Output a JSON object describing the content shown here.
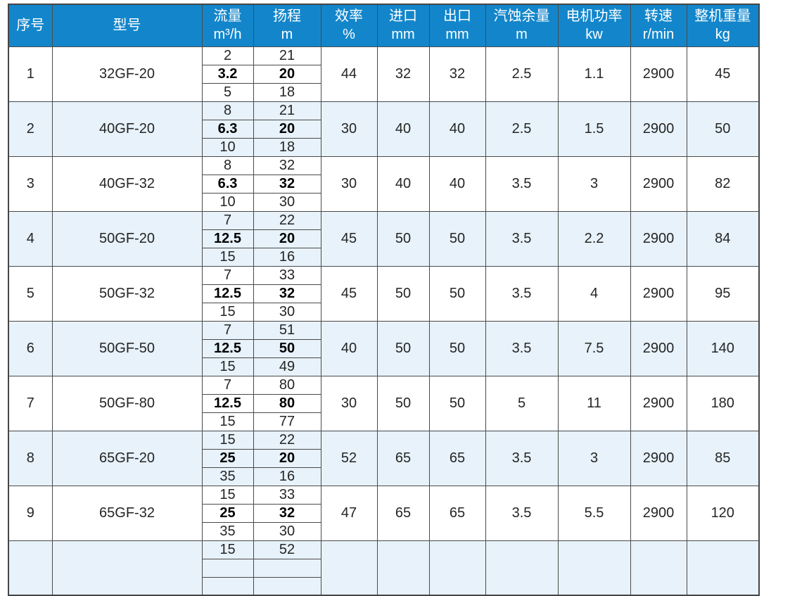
{
  "table": {
    "title": "pump-specification-table",
    "accent_color": "#1386cb",
    "band_color": "#e7f2fa",
    "border_color": "#4a4a4a",
    "columns": [
      {
        "label": "序号",
        "unit": ""
      },
      {
        "label": "型号",
        "unit": ""
      },
      {
        "label": "流量",
        "unit": "m³/h"
      },
      {
        "label": "扬程",
        "unit": "m"
      },
      {
        "label": "效率",
        "unit": "%"
      },
      {
        "label": "进口",
        "unit": "mm"
      },
      {
        "label": "出口",
        "unit": "mm"
      },
      {
        "label": "汽蚀余量",
        "unit": "m"
      },
      {
        "label": "电机功率",
        "unit": "kw"
      },
      {
        "label": "转速",
        "unit": "r/min"
      },
      {
        "label": "整机重量",
        "unit": "kg"
      }
    ],
    "rows": [
      {
        "no": "1",
        "model": "32GF-20",
        "flow": [
          "2",
          "3.2",
          "5"
        ],
        "head": [
          "21",
          "20",
          "18"
        ],
        "eff": "44",
        "inlet": "32",
        "outlet": "32",
        "npsh": "2.5",
        "power": "1.1",
        "speed": "2900",
        "weight": "45"
      },
      {
        "no": "2",
        "model": "40GF-20",
        "flow": [
          "8",
          "6.3",
          "10"
        ],
        "head": [
          "21",
          "20",
          "18"
        ],
        "eff": "30",
        "inlet": "40",
        "outlet": "40",
        "npsh": "2.5",
        "power": "1.5",
        "speed": "2900",
        "weight": "50"
      },
      {
        "no": "3",
        "model": "40GF-32",
        "flow": [
          "8",
          "6.3",
          "10"
        ],
        "head": [
          "32",
          "32",
          "30"
        ],
        "eff": "30",
        "inlet": "40",
        "outlet": "40",
        "npsh": "3.5",
        "power": "3",
        "speed": "2900",
        "weight": "82"
      },
      {
        "no": "4",
        "model": "50GF-20",
        "flow": [
          "7",
          "12.5",
          "15"
        ],
        "head": [
          "22",
          "20",
          "16"
        ],
        "eff": "45",
        "inlet": "50",
        "outlet": "50",
        "npsh": "3.5",
        "power": "2.2",
        "speed": "2900",
        "weight": "84"
      },
      {
        "no": "5",
        "model": "50GF-32",
        "flow": [
          "7",
          "12.5",
          "15"
        ],
        "head": [
          "33",
          "32",
          "30"
        ],
        "eff": "45",
        "inlet": "50",
        "outlet": "50",
        "npsh": "3.5",
        "power": "4",
        "speed": "2900",
        "weight": "95"
      },
      {
        "no": "6",
        "model": "50GF-50",
        "flow": [
          "7",
          "12.5",
          "15"
        ],
        "head": [
          "51",
          "50",
          "49"
        ],
        "eff": "40",
        "inlet": "50",
        "outlet": "50",
        "npsh": "3.5",
        "power": "7.5",
        "speed": "2900",
        "weight": "140"
      },
      {
        "no": "7",
        "model": "50GF-80",
        "flow": [
          "7",
          "12.5",
          "15"
        ],
        "head": [
          "80",
          "80",
          "77"
        ],
        "eff": "30",
        "inlet": "50",
        "outlet": "50",
        "npsh": "5",
        "power": "11",
        "speed": "2900",
        "weight": "180"
      },
      {
        "no": "8",
        "model": "65GF-20",
        "flow": [
          "15",
          "25",
          "35"
        ],
        "head": [
          "22",
          "20",
          "16"
        ],
        "eff": "52",
        "inlet": "65",
        "outlet": "65",
        "npsh": "3.5",
        "power": "3",
        "speed": "2900",
        "weight": "85"
      },
      {
        "no": "9",
        "model": "65GF-32",
        "flow": [
          "15",
          "25",
          "35"
        ],
        "head": [
          "33",
          "32",
          "30"
        ],
        "eff": "47",
        "inlet": "65",
        "outlet": "65",
        "npsh": "3.5",
        "power": "5.5",
        "speed": "2900",
        "weight": "120"
      },
      {
        "no": "",
        "model": "",
        "flow": [
          "15",
          "",
          ""
        ],
        "head": [
          "52",
          "",
          ""
        ],
        "eff": "",
        "inlet": "",
        "outlet": "",
        "npsh": "",
        "power": "",
        "speed": "",
        "weight": "",
        "partial": true
      }
    ]
  }
}
